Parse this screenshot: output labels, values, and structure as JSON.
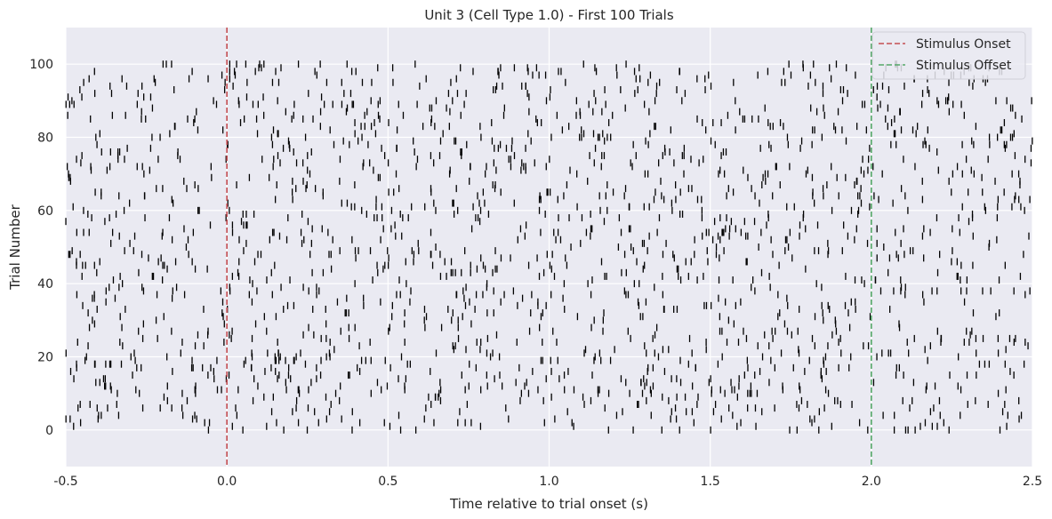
{
  "chart_data": {
    "type": "raster",
    "title": "Unit 3 (Cell Type 1.0) - First 100 Trials",
    "xlabel": "Time relative to trial onset (s)",
    "ylabel": "Trial Number",
    "xlim": [
      -0.5,
      2.5
    ],
    "ylim": [
      -10,
      110
    ],
    "xticks": [
      "-0.5",
      "0.0",
      "0.5",
      "1.0",
      "1.5",
      "2.0",
      "2.5"
    ],
    "xtick_values": [
      -0.5,
      0.0,
      0.5,
      1.0,
      1.5,
      2.0,
      2.5
    ],
    "yticks": [
      "0",
      "20",
      "40",
      "60",
      "80",
      "100"
    ],
    "ytick_values": [
      0,
      20,
      40,
      60,
      80,
      100
    ],
    "trials": [
      0,
      100
    ],
    "approx_spike_rate_hz": 6.5,
    "grid": true,
    "legend_position": "top-right",
    "reference_lines": [
      {
        "name": "Stimulus Onset",
        "x": 0.0,
        "color": "#c44e52",
        "style": "dashed"
      },
      {
        "name": "Stimulus Offset",
        "x": 2.0,
        "color": "#55a868",
        "style": "dashed"
      }
    ],
    "colors": {
      "background": "#eaeaf2",
      "grid": "#ffffff",
      "spike": "#000000"
    }
  }
}
